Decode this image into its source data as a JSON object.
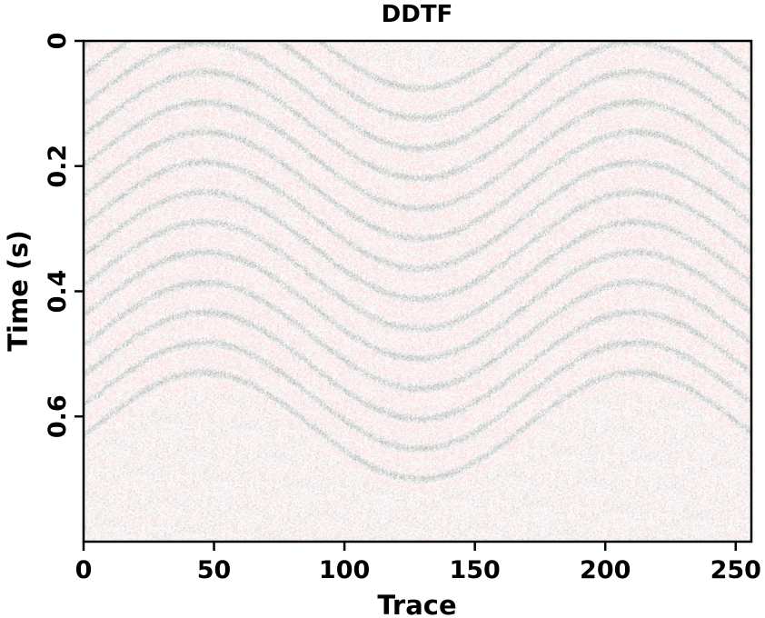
{
  "chart_data": {
    "type": "heatmap",
    "title": "DDTF",
    "xlabel": "Trace",
    "ylabel": "Time (s)",
    "xlim": [
      0,
      256
    ],
    "ylim": [
      0,
      0.8
    ],
    "x_ticks": [
      0,
      50,
      100,
      150,
      200,
      250
    ],
    "x_tick_labels": [
      "0",
      "50",
      "100",
      "150",
      "200",
      "250"
    ],
    "y_ticks": [
      0,
      0.2,
      0.4,
      0.6
    ],
    "y_tick_labels": [
      "0",
      "0.2",
      "0.4",
      "0.6"
    ],
    "y_axis_inverted": true,
    "grid": false,
    "legend": "none",
    "colormap": {
      "negative": "#f26d6d",
      "zero": "#ffffff",
      "positive": "#3a3a3a"
    },
    "description_of_content": "seismic gather with sinusoidal reflection events and strong random noise",
    "events": {
      "count": 14,
      "first_arrival_time": 0.24,
      "spacing": 0.048,
      "curve_amplitude": 0.085,
      "curve_center_trace": 128,
      "curve_period_traces": 165
    }
  }
}
